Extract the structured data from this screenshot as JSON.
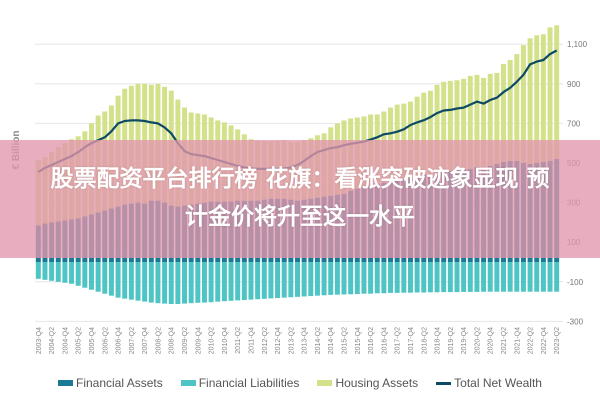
{
  "banner": {
    "line1": "股票配资平台排行榜 花旗：看涨突破迹象显现 预",
    "line2": "计金价将升至这一水平"
  },
  "chart_data": {
    "type": "bar",
    "stacked": true,
    "ylabel": "€ Billion",
    "ylim": [
      -300,
      1200
    ],
    "yticks": [
      -300,
      -100,
      100,
      300,
      500,
      700,
      900,
      1100
    ],
    "ytick_labels": [
      "-300",
      "-100",
      "100",
      "300",
      "500",
      "700",
      "900",
      "1,100"
    ],
    "y_axis_position": "right",
    "grid": true,
    "legend_position": "bottom",
    "categories": [
      "2003-Q4",
      "2004-Q1",
      "2004-Q2",
      "2004-Q3",
      "2004-Q4",
      "2005-Q1",
      "2005-Q2",
      "2005-Q3",
      "2005-Q4",
      "2006-Q1",
      "2006-Q2",
      "2006-Q3",
      "2006-Q4",
      "2007-Q1",
      "2007-Q2",
      "2007-Q3",
      "2007-Q4",
      "2008-Q1",
      "2008-Q2",
      "2008-Q3",
      "2008-Q4",
      "2009-Q1",
      "2009-Q2",
      "2009-Q3",
      "2009-Q4",
      "2010-Q1",
      "2010-Q2",
      "2010-Q3",
      "2010-Q4",
      "2011-Q1",
      "2011-Q2",
      "2011-Q3",
      "2011-Q4",
      "2012-Q1",
      "2012-Q2",
      "2012-Q3",
      "2012-Q4",
      "2013-Q1",
      "2013-Q2",
      "2013-Q3",
      "2013-Q4",
      "2014-Q1",
      "2014-Q2",
      "2014-Q3",
      "2014-Q4",
      "2015-Q1",
      "2015-Q2",
      "2015-Q3",
      "2015-Q4",
      "2016-Q1",
      "2016-Q2",
      "2016-Q3",
      "2016-Q4",
      "2017-Q1",
      "2017-Q2",
      "2017-Q3",
      "2017-Q4",
      "2018-Q1",
      "2018-Q2",
      "2018-Q3",
      "2018-Q4",
      "2019-Q1",
      "2019-Q2",
      "2019-Q3",
      "2019-Q4",
      "2020-Q1",
      "2020-Q2",
      "2020-Q3",
      "2020-Q4",
      "2021-Q1",
      "2021-Q2",
      "2021-Q3",
      "2021-Q4",
      "2022-Q1",
      "2022-Q2",
      "2022-Q3",
      "2022-Q4",
      "2023-Q1",
      "2023-Q2"
    ],
    "xtick_labels": [
      "2003-Q4",
      "2004-Q2",
      "2004-Q4",
      "2005-Q2",
      "2005-Q4",
      "2006-Q2",
      "2006-Q4",
      "2007-Q2",
      "2007-Q4",
      "2008-Q2",
      "2008-Q4",
      "2009-Q2",
      "2009-Q4",
      "2010-Q2",
      "2010-Q4",
      "2011-Q2",
      "2011-Q4",
      "2012-Q2",
      "2012-Q4",
      "2013-Q2",
      "2013-Q4",
      "2014-Q2",
      "2014-Q4",
      "2015-Q2",
      "2015-Q4",
      "2016-Q2",
      "2016-Q4",
      "2017-Q2",
      "2017-Q4",
      "2018-Q2",
      "2018-Q4",
      "2019-Q2",
      "2019-Q4",
      "2020-Q2",
      "2020-Q4",
      "2021-Q2",
      "2021-Q4",
      "2022-Q2",
      "2022-Q4",
      "2023-Q2"
    ],
    "series": [
      {
        "name": "Financial Assets",
        "kind": "bar",
        "color": "#1b7a93",
        "values": [
          185,
          195,
          200,
          205,
          210,
          215,
          220,
          230,
          240,
          250,
          260,
          270,
          280,
          290,
          295,
          300,
          295,
          310,
          310,
          300,
          285,
          280,
          285,
          290,
          295,
          300,
          305,
          305,
          305,
          305,
          310,
          310,
          310,
          310,
          315,
          320,
          320,
          320,
          315,
          310,
          315,
          320,
          325,
          330,
          335,
          340,
          345,
          360,
          370,
          375,
          385,
          395,
          400,
          405,
          410,
          420,
          425,
          430,
          440,
          440,
          445,
          455,
          460,
          465,
          470,
          470,
          480,
          465,
          485,
          495,
          505,
          510,
          510,
          500,
          495,
          500,
          505,
          510,
          520
        ]
      },
      {
        "name": "Financial Liabilities",
        "kind": "bar",
        "color": "#4fc4c4",
        "values": [
          -85,
          -90,
          -95,
          -100,
          -105,
          -110,
          -120,
          -130,
          -140,
          -150,
          -160,
          -170,
          -180,
          -185,
          -190,
          -195,
          -200,
          -205,
          -208,
          -210,
          -212,
          -212,
          -210,
          -208,
          -206,
          -205,
          -203,
          -200,
          -198,
          -196,
          -194,
          -192,
          -190,
          -188,
          -186,
          -184,
          -182,
          -180,
          -178,
          -176,
          -174,
          -172,
          -170,
          -168,
          -166,
          -165,
          -164,
          -163,
          -162,
          -160,
          -160,
          -158,
          -158,
          -156,
          -156,
          -155,
          -155,
          -154,
          -154,
          -153,
          -153,
          -152,
          -152,
          -152,
          -151,
          -151,
          -151,
          -150,
          -150,
          -150,
          -150,
          -150,
          -150,
          -150,
          -150,
          -150,
          -150,
          -150,
          -150
        ]
      },
      {
        "name": "Housing Assets",
        "kind": "bar",
        "color": "#d3e28a",
        "values": [
          330,
          335,
          355,
          375,
          390,
          405,
          415,
          430,
          460,
          490,
          500,
          520,
          560,
          585,
          595,
          600,
          605,
          585,
          590,
          585,
          580,
          540,
          495,
          465,
          455,
          445,
          425,
          410,
          400,
          385,
          360,
          335,
          310,
          302,
          295,
          288,
          292,
          295,
          290,
          295,
          300,
          305,
          315,
          320,
          345,
          360,
          370,
          365,
          360,
          360,
          360,
          350,
          360,
          375,
          385,
          380,
          385,
          405,
          415,
          425,
          450,
          455,
          455,
          453,
          455,
          470,
          465,
          465,
          465,
          460,
          495,
          510,
          540,
          595,
          635,
          645,
          645,
          675,
          675
        ]
      },
      {
        "name": "Total Net Wealth",
        "kind": "line",
        "color": "#0e4a63",
        "values": [
          455,
          475,
          490,
          505,
          520,
          535,
          555,
          580,
          600,
          615,
          630,
          660,
          700,
          712,
          715,
          715,
          712,
          705,
          700,
          680,
          650,
          600,
          560,
          545,
          540,
          535,
          525,
          515,
          505,
          495,
          485,
          478,
          472,
          470,
          470,
          470,
          470,
          472,
          478,
          490,
          510,
          535,
          555,
          565,
          575,
          580,
          590,
          597,
          602,
          608,
          618,
          630,
          645,
          650,
          658,
          670,
          692,
          705,
          716,
          732,
          752,
          765,
          768,
          775,
          780,
          795,
          810,
          800,
          818,
          830,
          858,
          880,
          910,
          945,
          998,
          1012,
          1020,
          1050,
          1068
        ]
      }
    ]
  }
}
